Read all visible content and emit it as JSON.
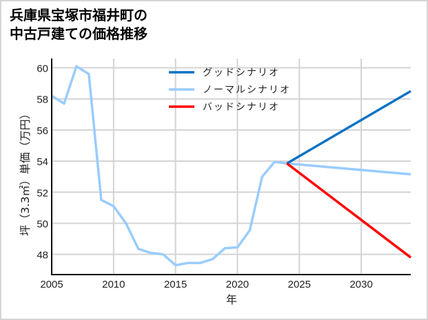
{
  "title_lines": [
    "兵庫県宝塚市福井町の",
    "中古戸建ての価格推移"
  ],
  "chart_data": {
    "type": "line",
    "title": "兵庫県宝塚市福井町の中古戸建ての価格推移",
    "xlabel": "年",
    "ylabel": "坪（3.3㎡）単価（万円）",
    "xlim": [
      2005,
      2034
    ],
    "ylim": [
      46.7,
      60.6
    ],
    "xticks": [
      2005,
      2010,
      2015,
      2020,
      2025,
      2030
    ],
    "yticks": [
      48,
      50,
      52,
      54,
      56,
      58,
      60
    ],
    "grid": true,
    "legend_position": "upper center",
    "series": [
      {
        "name": "グッドシナリオ",
        "color": "#0a72c4",
        "x": [
          2024,
          2034
        ],
        "values": [
          53.85,
          58.5
        ]
      },
      {
        "name": "ノーマルシナリオ",
        "color": "#99ccff",
        "x": [
          2005,
          2006,
          2007,
          2008,
          2009,
          2010,
          2011,
          2012,
          2013,
          2014,
          2015,
          2016,
          2017,
          2018,
          2019,
          2020,
          2021,
          2022,
          2023,
          2024,
          2034
        ],
        "values": [
          58.2,
          57.7,
          60.1,
          59.6,
          51.5,
          51.1,
          50.0,
          48.35,
          48.1,
          48.0,
          47.3,
          47.45,
          47.45,
          47.7,
          48.4,
          48.45,
          49.55,
          53.0,
          53.95,
          53.85,
          53.15
        ]
      },
      {
        "name": "バッドシナリオ",
        "color": "#ff0000",
        "x": [
          2024,
          2034
        ],
        "values": [
          53.85,
          47.8
        ]
      }
    ]
  }
}
